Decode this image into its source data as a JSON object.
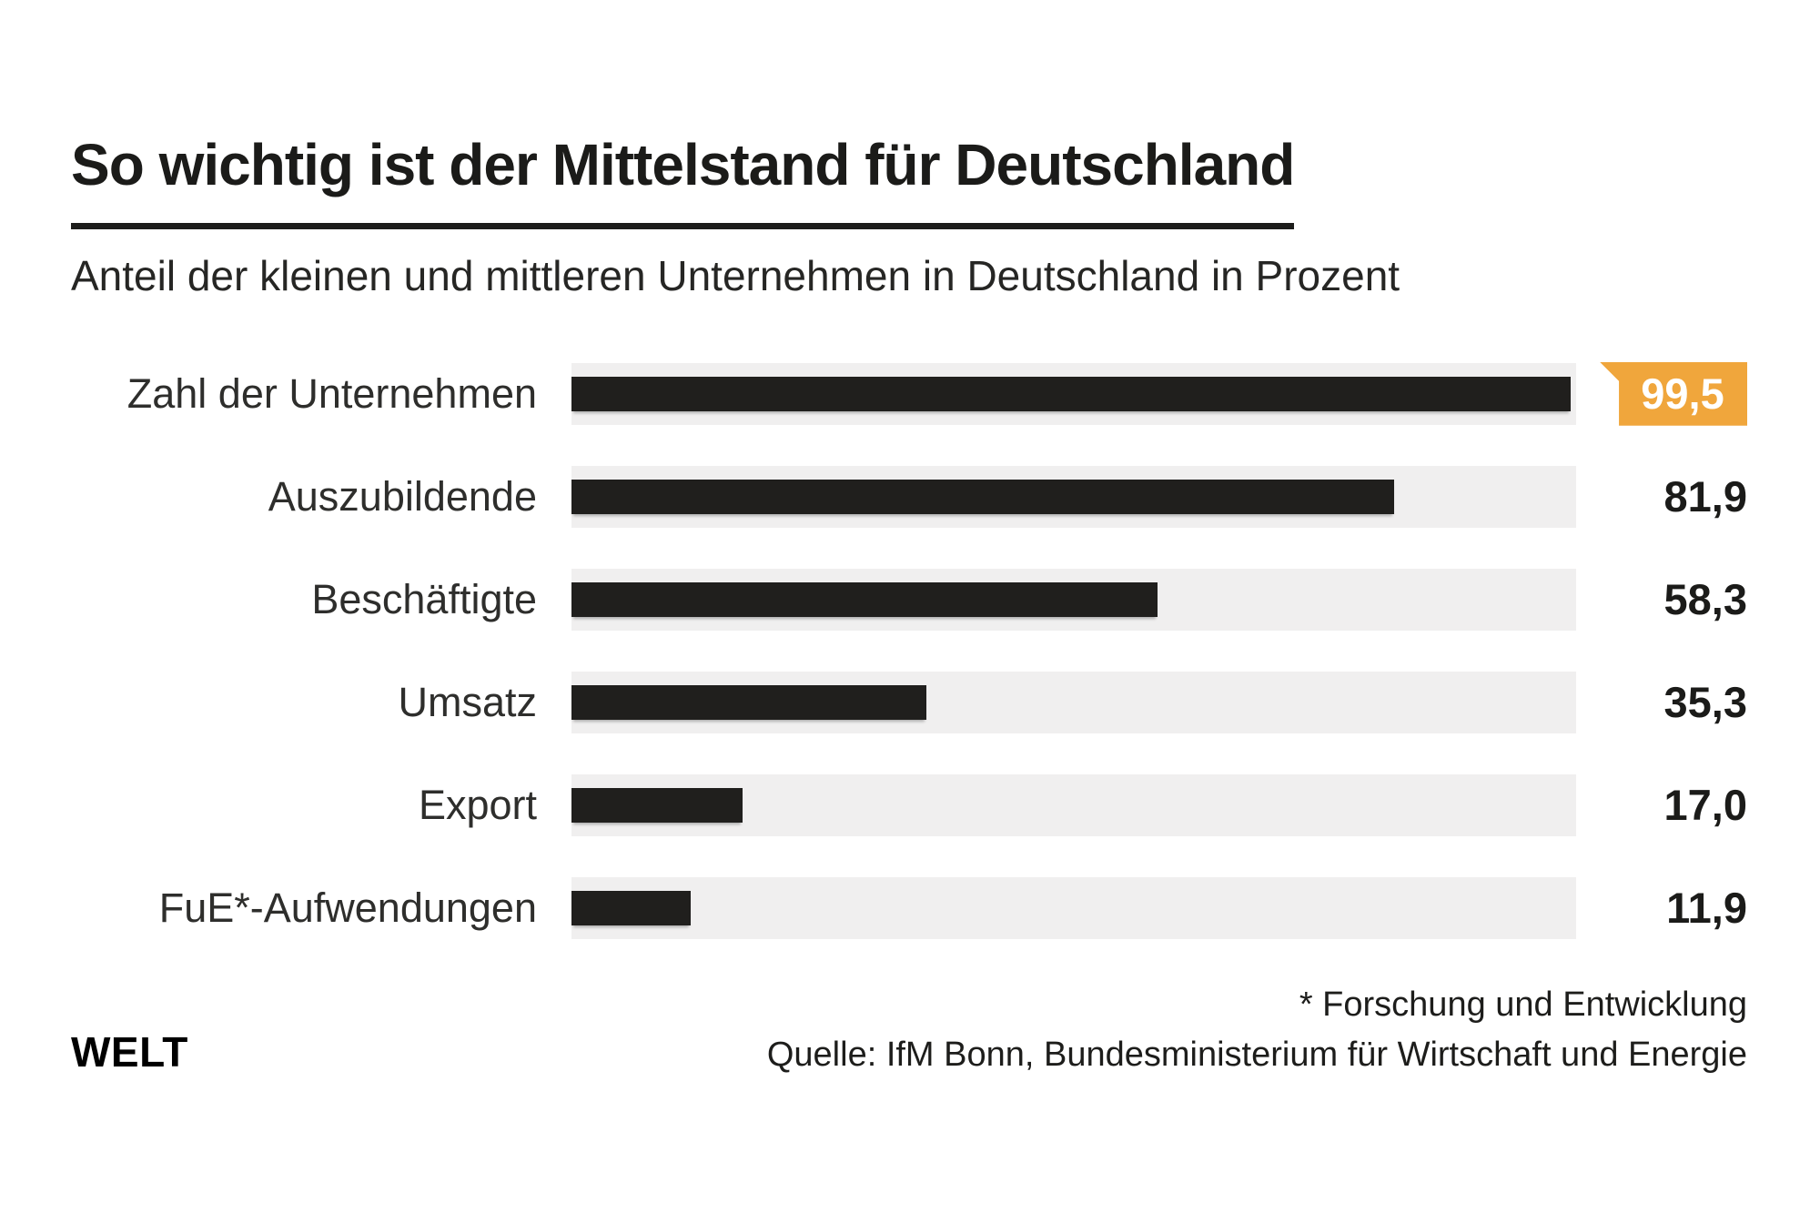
{
  "header": {
    "title": "So wichtig ist der Mittelstand für Deutschland",
    "subtitle": "Anteil der kleinen und mittleren Unternehmen in Deutschland in Prozent"
  },
  "chart_data": {
    "type": "bar",
    "orientation": "horizontal",
    "title": "So wichtig ist der Mittelstand für Deutschland",
    "subtitle_unit": "Anteil in Prozent",
    "categories": [
      "Zahl der Unternehmen",
      "Auszubildende",
      "Beschäftigte",
      "Umsatz",
      "Export",
      "FuE*-Aufwendungen"
    ],
    "values": [
      99.5,
      81.9,
      58.3,
      35.3,
      17.0,
      11.9
    ],
    "value_labels": [
      "99,5",
      "81,9",
      "58,3",
      "35,3",
      "17,0",
      "11,9"
    ],
    "xlim": [
      0,
      100
    ],
    "grid": false,
    "legend": false,
    "highlight_index": 0,
    "colors": {
      "bar": "#201f1d",
      "track": "#f0efef",
      "highlight_badge": "#f0a63c",
      "badge_text": "#ffffff",
      "text": "#1b1b19"
    }
  },
  "footer": {
    "note": "* Forschung und Entwicklung",
    "source": "Quelle: IfM Bonn, Bundesministerium für Wirtschaft und Energie",
    "logo": "WELT"
  }
}
